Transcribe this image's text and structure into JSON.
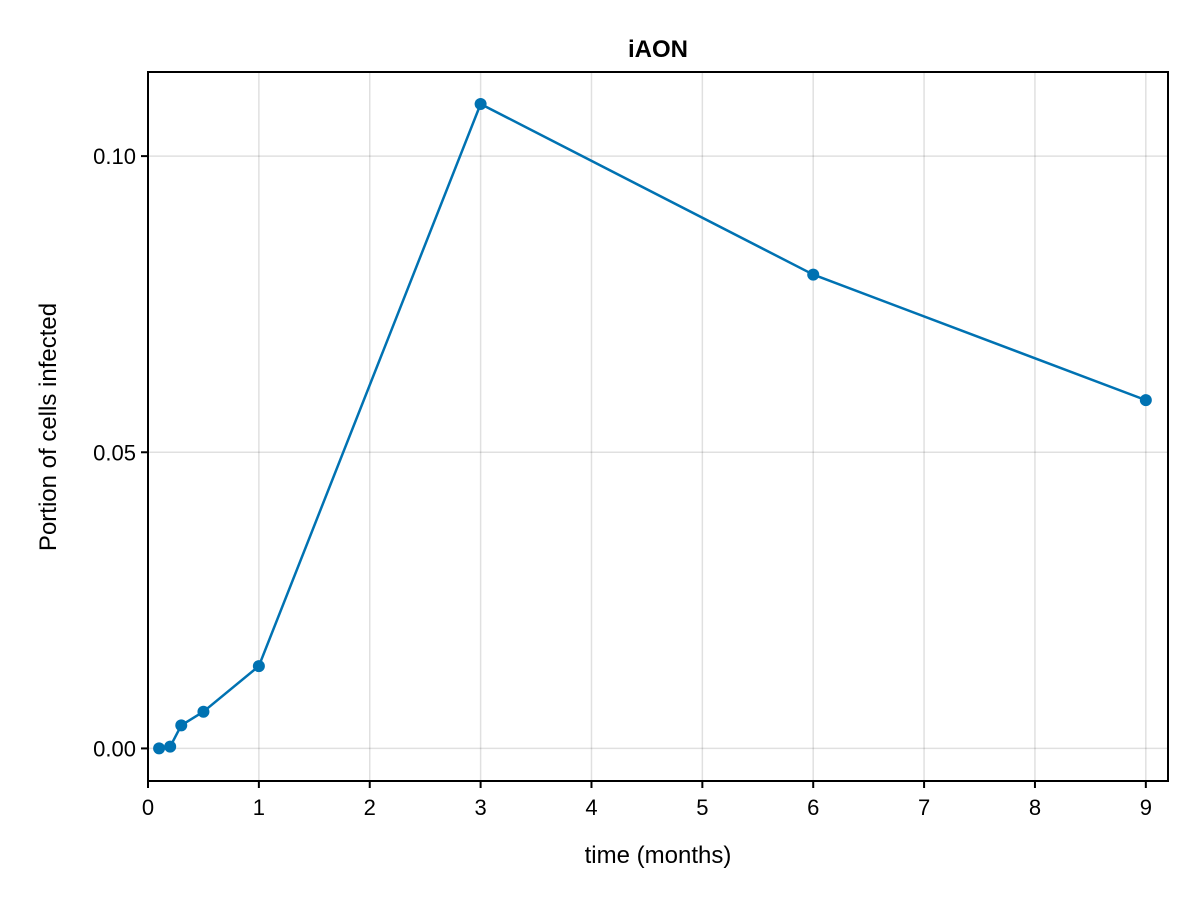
{
  "chart_data": {
    "type": "line",
    "title": "iAON",
    "xlabel": "time (months)",
    "ylabel": "Portion of cells infected",
    "xlim": [
      0,
      9.2
    ],
    "ylim": [
      -0.0055,
      0.1142
    ],
    "xticks": [
      0,
      1,
      2,
      3,
      4,
      5,
      6,
      7,
      8,
      9
    ],
    "xtick_labels": [
      "0",
      "1",
      "2",
      "3",
      "4",
      "5",
      "6",
      "7",
      "8",
      "9"
    ],
    "yticks": [
      0,
      0.05,
      0.1
    ],
    "ytick_labels": [
      "0.00",
      "0.05",
      "0.10"
    ],
    "grid": true,
    "legend": "none",
    "series": [
      {
        "color": "#0072b2",
        "x": [
          0.1,
          0.2,
          0.3,
          0.5,
          1,
          3,
          6,
          9
        ],
        "y": [
          0.0,
          0.0003,
          0.0039,
          0.0062,
          0.0139,
          0.1088,
          0.08,
          0.0588
        ]
      }
    ]
  }
}
